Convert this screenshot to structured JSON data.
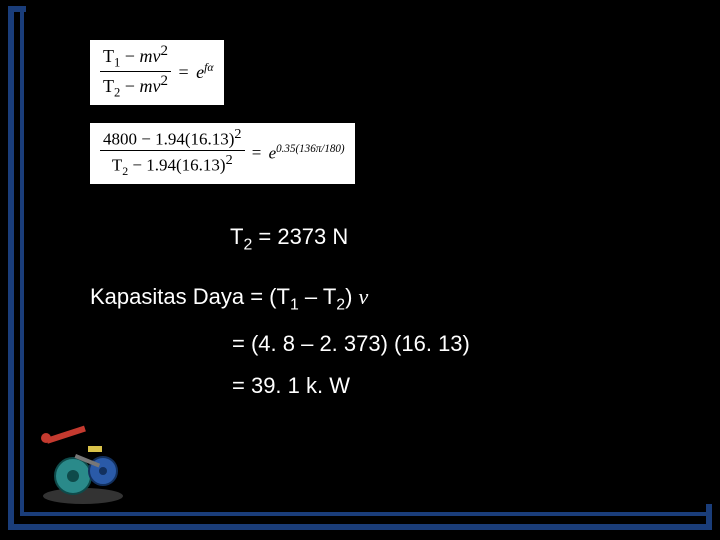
{
  "equations": {
    "general": {
      "numerator_html": "T<sub class='s'>1</sub> − <span class='italic'>mv</span><sup>2</sup>",
      "denominator_html": "T<sub class='s'>2</sub> − <span class='italic'>mv</span><sup>2</sup>",
      "rhs_html": "e<sup><span class='italic'>f</span>α</sup>"
    },
    "substituted": {
      "numerator_html": "4800 − 1.94(16.13)<sup>2</sup>",
      "denominator_html": "T<sub class='s'>2</sub> − 1.94(16.13)<sup>2</sup>",
      "rhs_html": "e<sup>0.35(136π/180)</sup>"
    }
  },
  "lines": {
    "t2_result": "T<sub class='w'>2</sub> = 2373 N",
    "kapasitas_lhs": "Kapasitas Daya = (T<sub class='w'>1</sub> – T<sub class='w'>2</sub>) <span class='italic'>v</span>",
    "kapasitas_sub": "= (4. 8 – 2. 373) (16. 13)",
    "kapasitas_res": "= 39. 1 k. W"
  },
  "colors": {
    "background": "#000000",
    "frame": "#1a3d7a",
    "text": "#ffffff",
    "eq_box_bg": "#ffffff",
    "eq_box_text": "#000000"
  },
  "illustration": {
    "name": "mechanical-pulley-assembly",
    "palette": {
      "red": "#c43a2f",
      "blue": "#2a5aa8",
      "teal": "#2a8a8a",
      "grey": "#777777",
      "yellow": "#d9c24a"
    }
  }
}
